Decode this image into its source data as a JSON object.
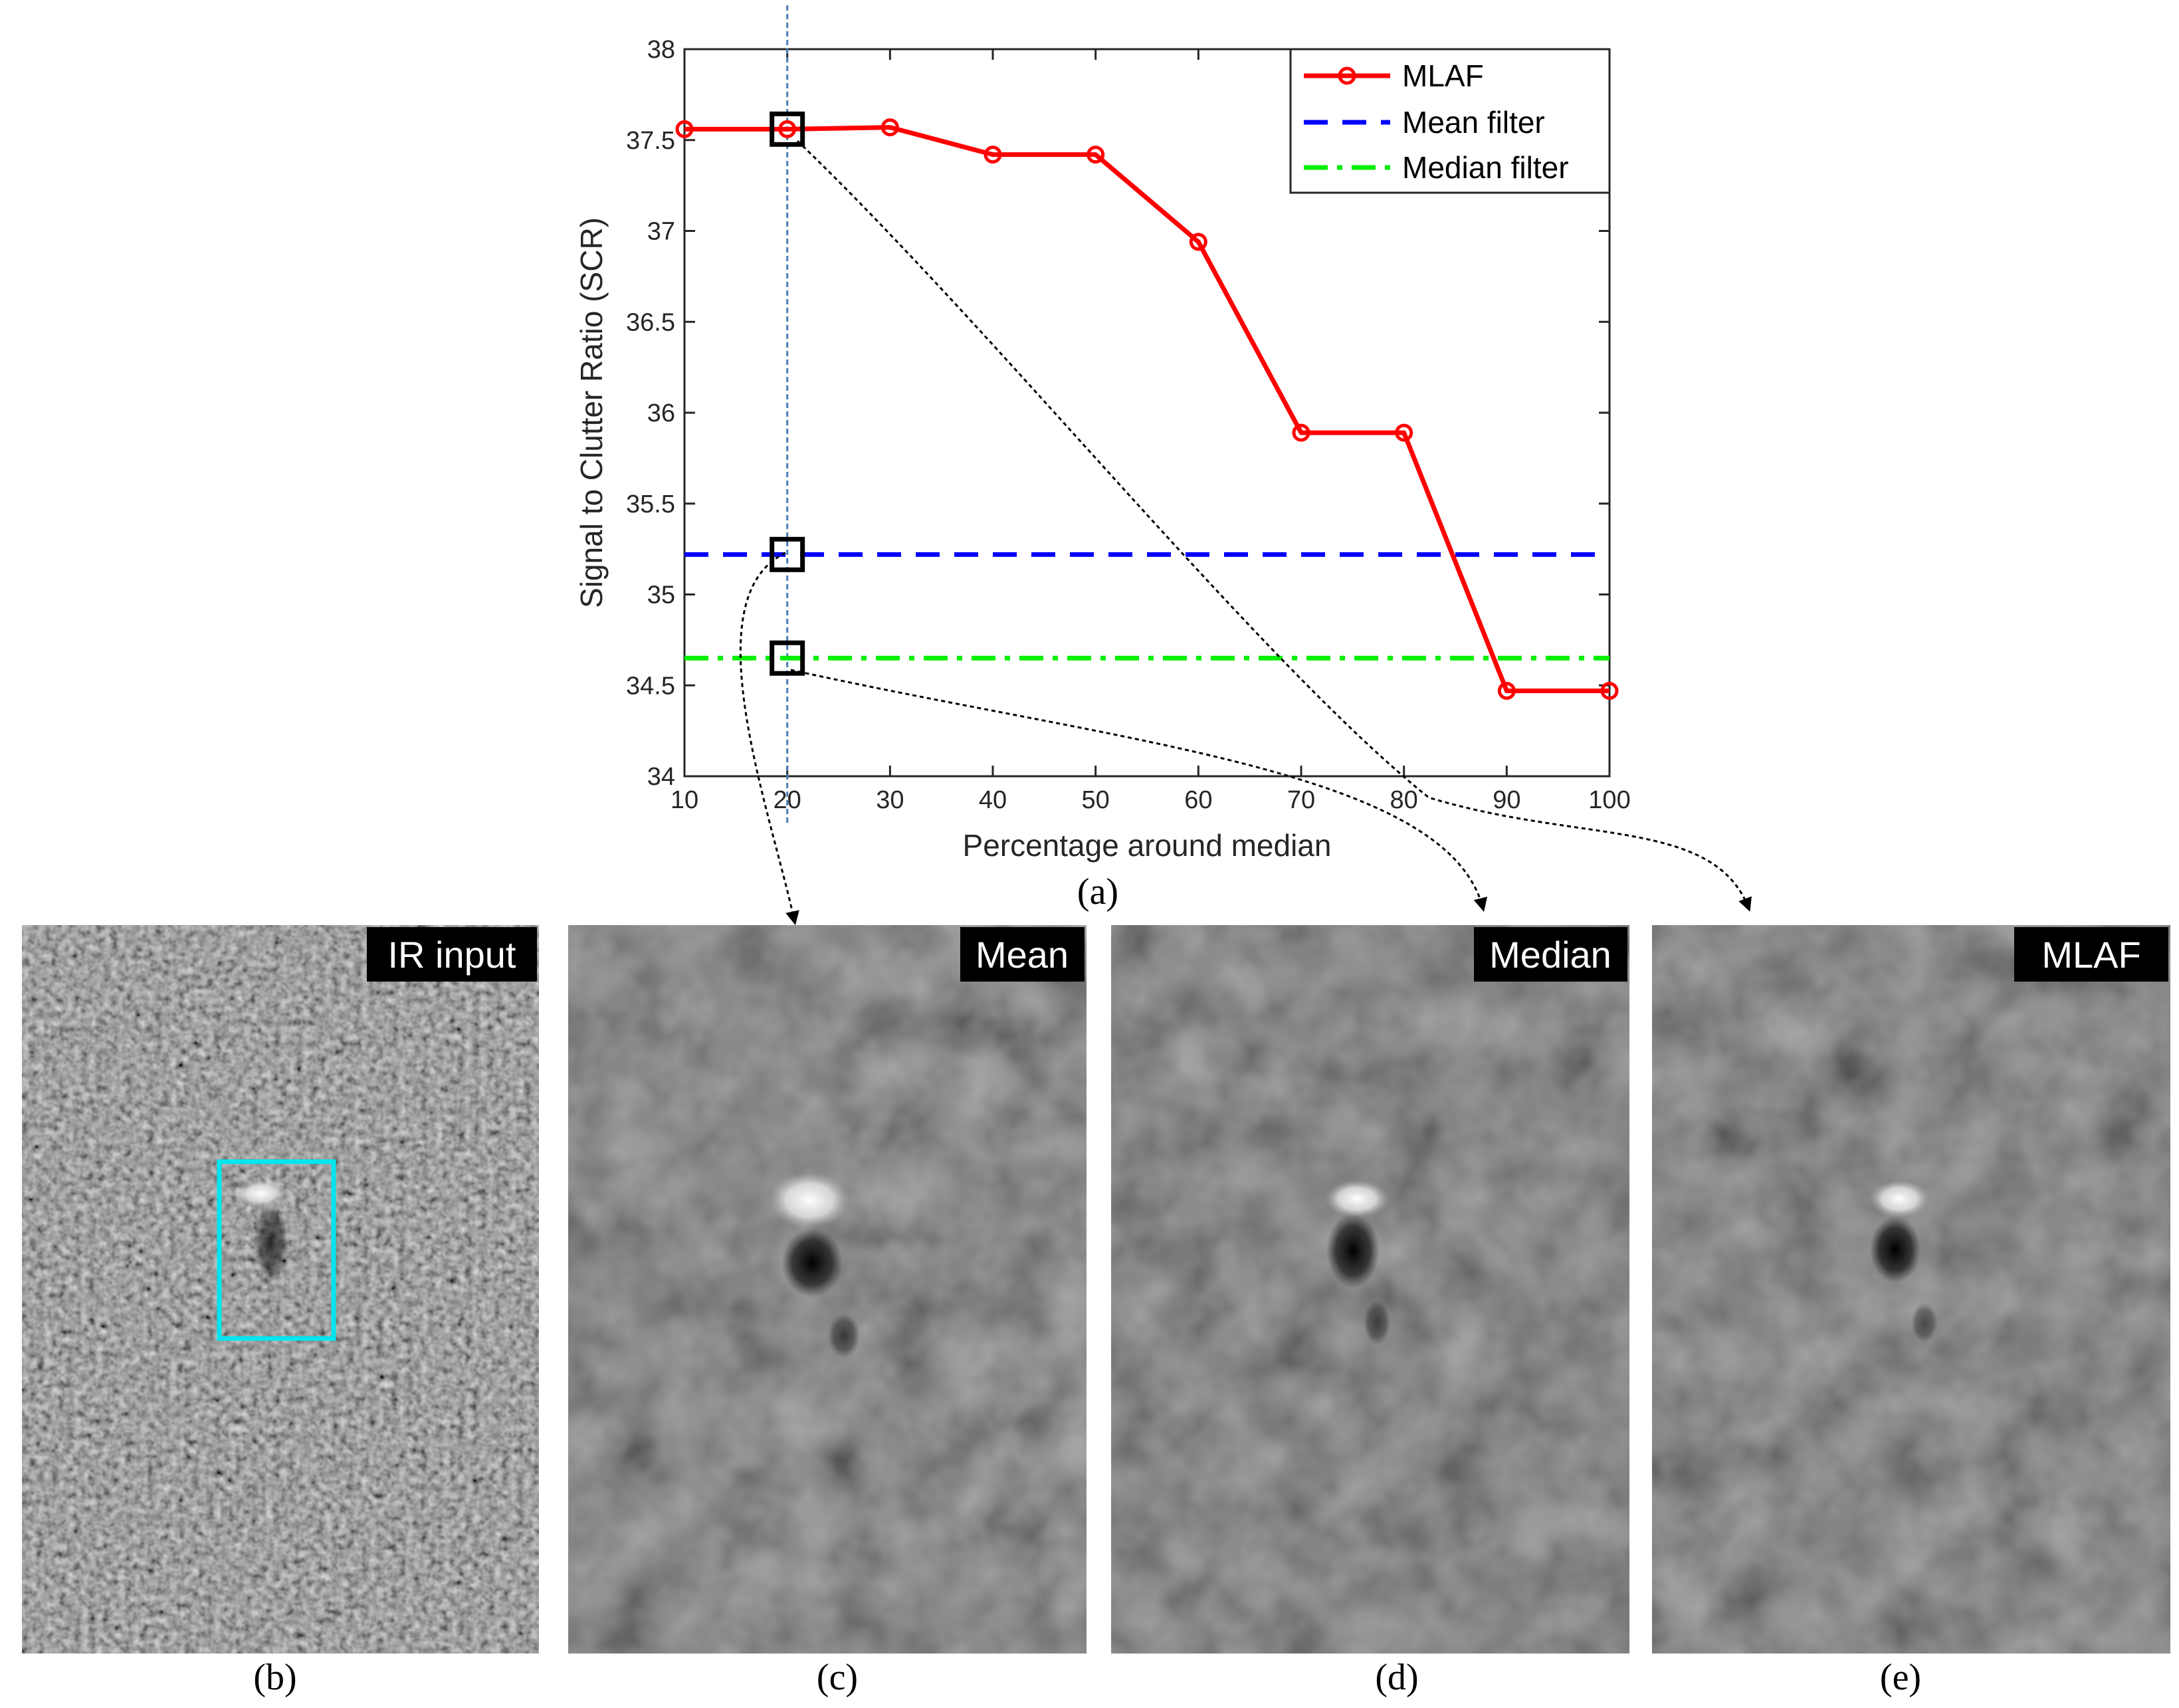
{
  "chart_data": {
    "type": "line",
    "xlabel": "Percentage around median",
    "ylabel": "Signal to Clutter Ratio (SCR)",
    "xlim": [
      10,
      100
    ],
    "ylim": [
      34,
      38
    ],
    "xticks": [
      10,
      20,
      30,
      40,
      50,
      60,
      70,
      80,
      90,
      100
    ],
    "yticks": [
      34,
      34.5,
      35,
      35.5,
      36,
      36.5,
      37,
      37.5,
      38
    ],
    "x": [
      10,
      20,
      30,
      40,
      50,
      60,
      70,
      80,
      90,
      100
    ],
    "series": [
      {
        "name": "MLAF",
        "style": "solid-circle",
        "color": "#ff0000",
        "values": [
          37.56,
          37.56,
          37.57,
          37.42,
          37.42,
          36.94,
          35.89,
          35.89,
          34.47,
          34.47
        ]
      },
      {
        "name": "Mean filter",
        "style": "dashed",
        "color": "#0000ff",
        "constant": 35.22
      },
      {
        "name": "Median filter",
        "style": "dashdot",
        "color": "#00ee00",
        "constant": 34.65
      }
    ],
    "reference_line_x": 20,
    "highlight_points": [
      {
        "series": "MLAF",
        "x": 20,
        "y": 37.56,
        "target": "MLAF"
      },
      {
        "series": "Mean filter",
        "x": 20,
        "y": 35.22,
        "target": "Mean"
      },
      {
        "series": "Median filter",
        "x": 20,
        "y": 34.65,
        "target": "Median"
      }
    ],
    "legend_position": "top-right",
    "caption": "(a)"
  },
  "panels": [
    {
      "title": "IR input",
      "caption": "(b)",
      "highlight_box": true
    },
    {
      "title": "Mean",
      "caption": "(c)"
    },
    {
      "title": "Median",
      "caption": "(d)"
    },
    {
      "title": "MLAF",
      "caption": "(e)"
    }
  ],
  "colors": {
    "highlight_box": "#00e5ee",
    "axis": "#262626"
  }
}
